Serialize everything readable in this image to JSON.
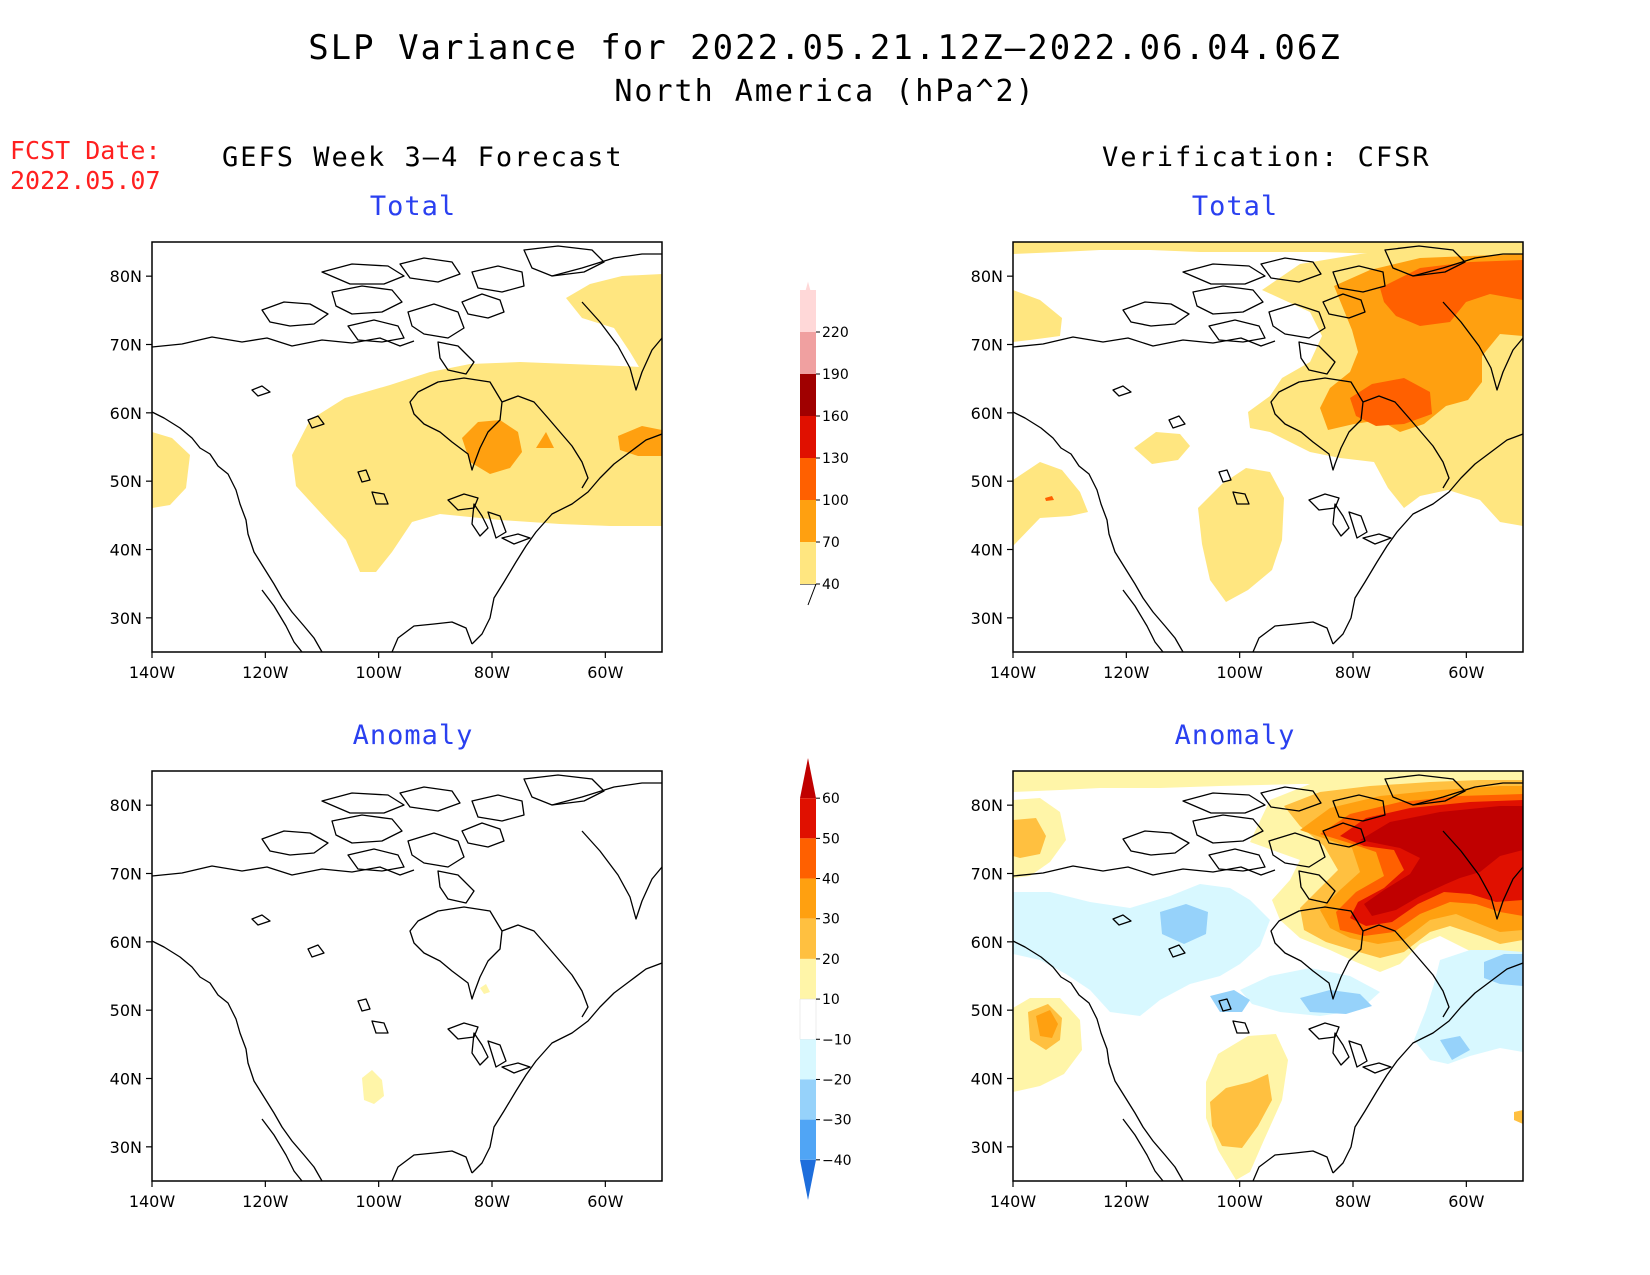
{
  "header": {
    "title": "SLP Variance for 2022.05.21.12Z–2022.06.04.06Z",
    "subtitle": "North America (hPa^2)"
  },
  "forecast_date": {
    "label": "FCST Date:",
    "value": "2022.05.07"
  },
  "columns": {
    "left": "GEFS Week 3–4 Forecast",
    "right": "Verification: CFSR"
  },
  "panels": {
    "gefs_total": {
      "title": "Total"
    },
    "cfsr_total": {
      "title": "Total"
    },
    "gefs_anomaly": {
      "title": "Anomaly"
    },
    "cfsr_anomaly": {
      "title": "Anomaly"
    }
  },
  "map_axes": {
    "lat_ticks": [
      "80N",
      "70N",
      "60N",
      "50N",
      "40N",
      "30N"
    ],
    "lat_values": [
      80,
      70,
      60,
      50,
      40,
      30
    ],
    "lon_ticks": [
      "140W",
      "120W",
      "100W",
      "80W",
      "60W"
    ],
    "lon_values": [
      -140,
      -120,
      -100,
      -80,
      -60
    ],
    "lon_range": [
      -140,
      -50
    ],
    "lat_range": [
      25,
      85
    ]
  },
  "colorbars": {
    "total": {
      "levels": [
        "40",
        "70",
        "100",
        "130",
        "160",
        "190",
        "220"
      ],
      "colors": [
        "#ffe680",
        "#ffa010",
        "#ff6000",
        "#e01000",
        "#a00000",
        "#f0a0a0",
        "#ffd8d8"
      ]
    },
    "anomaly": {
      "levels": [
        "60",
        "50",
        "40",
        "30",
        "20",
        "10",
        "−10",
        "−20",
        "−30",
        "−40"
      ],
      "colors": [
        "#c00000",
        "#e01000",
        "#ff6000",
        "#ffa010",
        "#ffc040",
        "#fff5a8",
        "#ffffff",
        "#d8f8ff",
        "#96d2fa",
        "#50a5f5",
        "#1e6edc"
      ]
    }
  }
}
